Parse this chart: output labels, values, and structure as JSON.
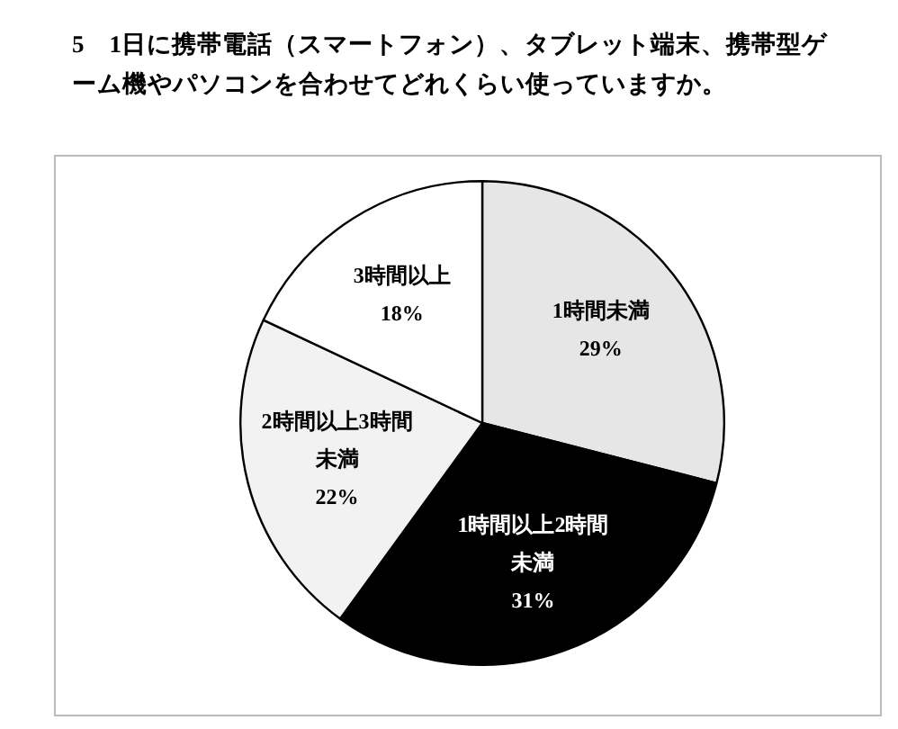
{
  "chart_data": {
    "type": "pie",
    "title": "5　1日に携帯電話（スマートフォン）、タブレット端末、携帯型ゲーム機やパソコンを合わせてどれくらい使っていますか。",
    "categories": [
      "1時間未満",
      "1時間以上2時間未満",
      "2時間以上3時間未満",
      "3時間以上"
    ],
    "values": [
      29,
      31,
      22,
      18
    ],
    "colors": [
      "#e6e6e6",
      "#000000",
      "#f2f2f2",
      "#ffffff"
    ],
    "value_labels": [
      "29%",
      "31%",
      "22%",
      "18%"
    ],
    "legend": false
  }
}
